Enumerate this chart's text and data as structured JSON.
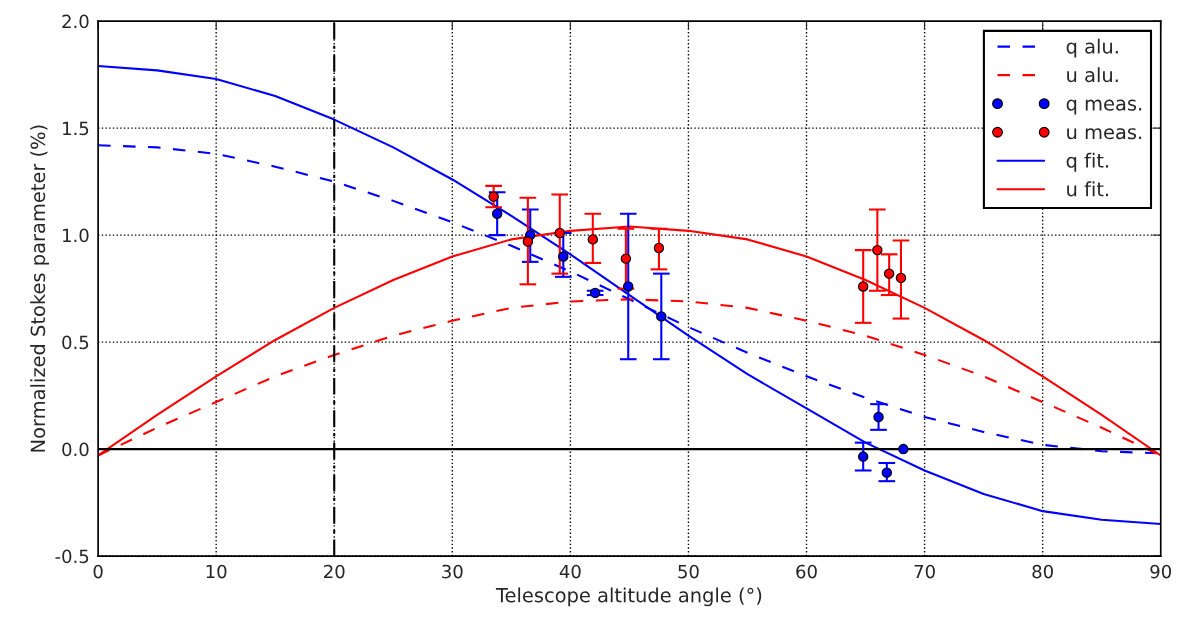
{
  "chart_data": {
    "type": "line",
    "xlabel": "Telescope altitude angle (°)",
    "ylabel": "Normalized Stokes parameter (%)",
    "xlim": [
      0,
      90
    ],
    "ylim": [
      -0.5,
      2.0
    ],
    "xticks": [
      0,
      10,
      20,
      30,
      40,
      50,
      60,
      70,
      80,
      90
    ],
    "yticks": [
      -0.5,
      {
        "value": 0,
        "label": "0.0"
      },
      0.5,
      {
        "value": 1,
        "label": "1.0"
      },
      1.5,
      {
        "value": 2,
        "label": "2.0"
      }
    ],
    "grid": true,
    "legend": "top right",
    "ref_lines": [
      {
        "axis": "x",
        "value": 20,
        "color": "#000000",
        "line_style": "dashdot"
      },
      {
        "axis": "y",
        "value": 0,
        "color": "#000000",
        "line_style": "solid"
      }
    ],
    "series": [
      {
        "name": "q alu.",
        "color": "#0000ff",
        "line_style": "dashed",
        "x": [
          0,
          5,
          10,
          15,
          20,
          25,
          30,
          35,
          40,
          45,
          50,
          55,
          60,
          65,
          70,
          75,
          80,
          85,
          90
        ],
        "values": [
          1.42,
          1.41,
          1.38,
          1.32,
          1.25,
          1.16,
          1.06,
          0.95,
          0.83,
          0.7,
          0.57,
          0.45,
          0.34,
          0.24,
          0.15,
          0.08,
          0.02,
          -0.01,
          -0.02
        ]
      },
      {
        "name": "u alu.",
        "color": "#ff0000",
        "line_style": "dashed",
        "x": [
          0,
          5,
          10,
          15,
          20,
          25,
          30,
          35,
          40,
          45,
          50,
          55,
          60,
          65,
          70,
          75,
          80,
          85,
          90
        ],
        "values": [
          -0.03,
          0.1,
          0.22,
          0.34,
          0.44,
          0.53,
          0.6,
          0.66,
          0.69,
          0.7,
          0.69,
          0.66,
          0.6,
          0.53,
          0.44,
          0.34,
          0.22,
          0.1,
          -0.03
        ]
      },
      {
        "name": "q meas.",
        "type": "scatter",
        "color": "#0000ff",
        "marker": "circle",
        "x": [
          33.8,
          36.6,
          39.4,
          42.1,
          44.9,
          47.7,
          64.8,
          66.1,
          66.8,
          68.2
        ],
        "values": [
          1.1,
          1.0,
          0.9,
          0.73,
          0.76,
          0.62,
          -0.035,
          0.15,
          -0.11,
          0.0
        ],
        "errors": [
          [
            1.0,
            1.2
          ],
          [
            0.875,
            1.12
          ],
          [
            0.805,
            1.01
          ],
          [
            0.72,
            0.74
          ],
          [
            0.42,
            1.1
          ],
          [
            0.42,
            0.82
          ],
          [
            -0.1,
            0.03
          ],
          [
            0.09,
            0.21
          ],
          [
            -0.15,
            -0.065
          ],
          null
        ]
      },
      {
        "name": "u meas.",
        "type": "scatter",
        "color": "#ff0000",
        "marker": "circle",
        "x": [
          33.5,
          36.4,
          39.1,
          41.9,
          44.7,
          47.5,
          64.8,
          66.0,
          67.0,
          68.0
        ],
        "values": [
          1.18,
          0.97,
          1.01,
          0.98,
          0.89,
          0.94,
          0.76,
          0.93,
          0.82,
          0.8
        ],
        "errors": [
          [
            1.13,
            1.23
          ],
          [
            0.77,
            1.175
          ],
          [
            0.82,
            1.19
          ],
          [
            0.87,
            1.1
          ],
          [
            0.75,
            1.03
          ],
          [
            0.84,
            1.03
          ],
          [
            0.59,
            0.93
          ],
          [
            0.74,
            1.12
          ],
          [
            0.72,
            0.91
          ],
          [
            0.61,
            0.975
          ]
        ]
      },
      {
        "name": "q fit.",
        "color": "#0000ff",
        "line_style": "solid",
        "x": [
          0,
          5,
          10,
          15,
          20,
          25,
          30,
          35,
          40,
          45,
          50,
          55,
          60,
          65,
          70,
          75,
          80,
          85,
          90
        ],
        "values": [
          1.79,
          1.77,
          1.73,
          1.65,
          1.54,
          1.41,
          1.26,
          1.09,
          0.91,
          0.72,
          0.53,
          0.35,
          0.19,
          0.03,
          -0.1,
          -0.21,
          -0.29,
          -0.33,
          -0.35
        ]
      },
      {
        "name": "u fit.",
        "color": "#ff0000",
        "line_style": "solid",
        "x": [
          0,
          5,
          10,
          15,
          20,
          25,
          30,
          35,
          40,
          45,
          50,
          55,
          60,
          65,
          70,
          75,
          80,
          85,
          90
        ],
        "values": [
          -0.03,
          0.16,
          0.34,
          0.51,
          0.66,
          0.79,
          0.9,
          0.98,
          1.02,
          1.04,
          1.02,
          0.98,
          0.9,
          0.79,
          0.66,
          0.51,
          0.34,
          0.16,
          -0.03
        ]
      }
    ]
  }
}
